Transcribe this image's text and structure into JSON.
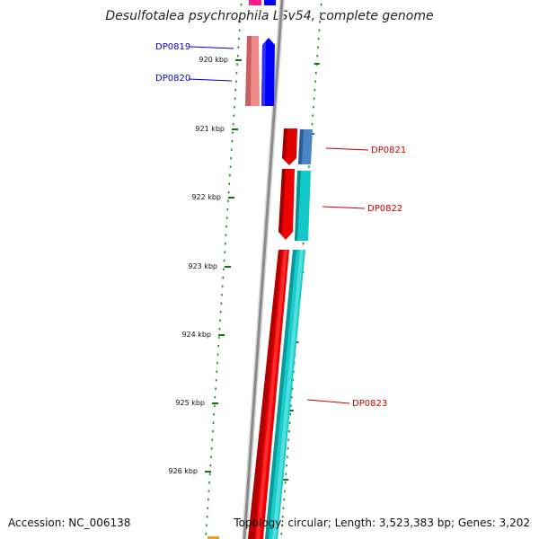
{
  "title": "Desulfotalea psychrophila LSv54, complete genome",
  "footer": {
    "accession": "Accession: NC_006138",
    "summary": "Topology: circular; Length: 3,523,383 bp; Genes: 3,202"
  },
  "scale_ticks": [
    "920 kbp",
    "921 kbp",
    "922 kbp",
    "923 kbp",
    "924 kbp",
    "925 kbp",
    "926 kbp"
  ],
  "gene_labels": [
    {
      "name": "DP0819",
      "color": "#0000cc"
    },
    {
      "name": "DP0820",
      "color": "#0000cc"
    },
    {
      "name": "DP0821",
      "color": "#cc0000"
    },
    {
      "name": "DP0822",
      "color": "#cc0000"
    },
    {
      "name": "DP0823",
      "color": "#cc0000"
    }
  ],
  "colors": {
    "tick": "#0a7a0a",
    "dotted_track": "#1a8a1a",
    "backbone": "#8a8a8a"
  }
}
